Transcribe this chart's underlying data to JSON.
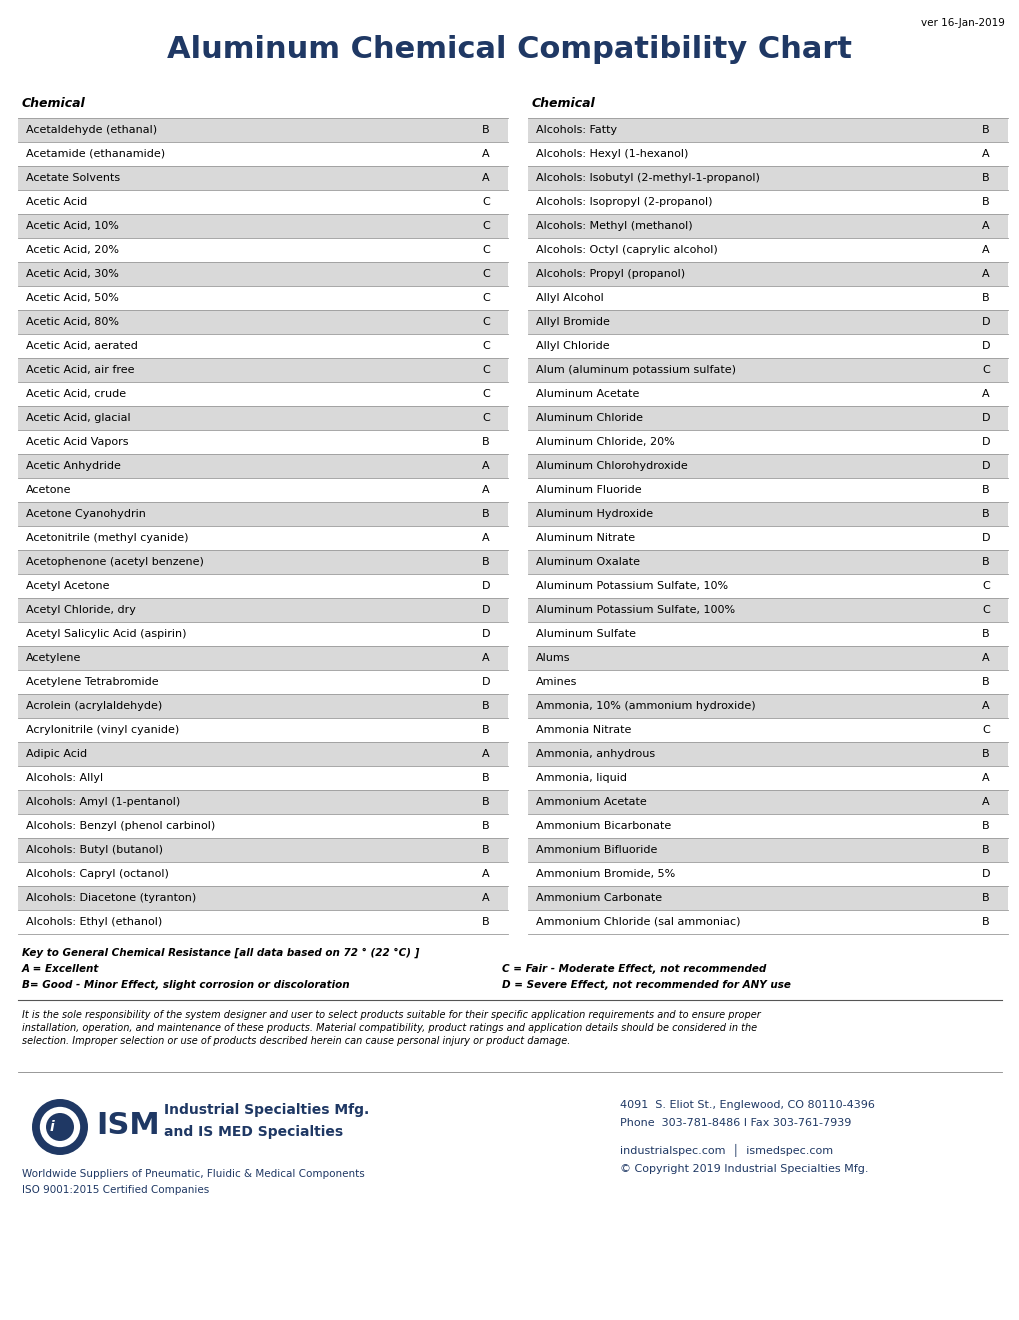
{
  "title": "Aluminum Chemical Compatibility Chart",
  "version": "ver 16-Jan-2019",
  "left_column": [
    [
      "Acetaldehyde (ethanal)",
      "B"
    ],
    [
      "Acetamide (ethanamide)",
      "A"
    ],
    [
      "Acetate Solvents",
      "A"
    ],
    [
      "Acetic Acid",
      "C"
    ],
    [
      "Acetic Acid, 10%",
      "C"
    ],
    [
      "Acetic Acid, 20%",
      "C"
    ],
    [
      "Acetic Acid, 30%",
      "C"
    ],
    [
      "Acetic Acid, 50%",
      "C"
    ],
    [
      "Acetic Acid, 80%",
      "C"
    ],
    [
      "Acetic Acid, aerated",
      "C"
    ],
    [
      "Acetic Acid, air free",
      "C"
    ],
    [
      "Acetic Acid, crude",
      "C"
    ],
    [
      "Acetic Acid, glacial",
      "C"
    ],
    [
      "Acetic Acid Vapors",
      "B"
    ],
    [
      "Acetic Anhydride",
      "A"
    ],
    [
      "Acetone",
      "A"
    ],
    [
      "Acetone Cyanohydrin",
      "B"
    ],
    [
      "Acetonitrile (methyl cyanide)",
      "A"
    ],
    [
      "Acetophenone (acetyl benzene)",
      "B"
    ],
    [
      "Acetyl Acetone",
      "D"
    ],
    [
      "Acetyl Chloride, dry",
      "D"
    ],
    [
      "Acetyl Salicylic Acid (aspirin)",
      "D"
    ],
    [
      "Acetylene",
      "A"
    ],
    [
      "Acetylene Tetrabromide",
      "D"
    ],
    [
      "Acrolein (acrylaldehyde)",
      "B"
    ],
    [
      "Acrylonitrile (vinyl cyanide)",
      "B"
    ],
    [
      "Adipic Acid",
      "A"
    ],
    [
      "Alcohols: Allyl",
      "B"
    ],
    [
      "Alcohols: Amyl (1-pentanol)",
      "B"
    ],
    [
      "Alcohols: Benzyl (phenol carbinol)",
      "B"
    ],
    [
      "Alcohols: Butyl (butanol)",
      "B"
    ],
    [
      "Alcohols: Capryl (octanol)",
      "A"
    ],
    [
      "Alcohols: Diacetone (tyranton)",
      "A"
    ],
    [
      "Alcohols: Ethyl (ethanol)",
      "B"
    ]
  ],
  "right_column": [
    [
      "Alcohols: Fatty",
      "B"
    ],
    [
      "Alcohols: Hexyl (1-hexanol)",
      "A"
    ],
    [
      "Alcohols: Isobutyl (2-methyl-1-propanol)",
      "B"
    ],
    [
      "Alcohols: Isopropyl (2-propanol)",
      "B"
    ],
    [
      "Alcohols: Methyl (methanol)",
      "A"
    ],
    [
      "Alcohols: Octyl (caprylic alcohol)",
      "A"
    ],
    [
      "Alcohols: Propyl (propanol)",
      "A"
    ],
    [
      "Allyl Alcohol",
      "B"
    ],
    [
      "Allyl Bromide",
      "D"
    ],
    [
      "Allyl Chloride",
      "D"
    ],
    [
      "Alum (aluminum potassium sulfate)",
      "C"
    ],
    [
      "Aluminum Acetate",
      "A"
    ],
    [
      "Aluminum Chloride",
      "D"
    ],
    [
      "Aluminum Chloride, 20%",
      "D"
    ],
    [
      "Aluminum Chlorohydroxide",
      "D"
    ],
    [
      "Aluminum Fluoride",
      "B"
    ],
    [
      "Aluminum Hydroxide",
      "B"
    ],
    [
      "Aluminum Nitrate",
      "D"
    ],
    [
      "Aluminum Oxalate",
      "B"
    ],
    [
      "Aluminum Potassium Sulfate, 10%",
      "C"
    ],
    [
      "Aluminum Potassium Sulfate, 100%",
      "C"
    ],
    [
      "Aluminum Sulfate",
      "B"
    ],
    [
      "Alums",
      "A"
    ],
    [
      "Amines",
      "B"
    ],
    [
      "Ammonia, 10% (ammonium hydroxide)",
      "A"
    ],
    [
      "Ammonia Nitrate",
      "C"
    ],
    [
      "Ammonia, anhydrous",
      "B"
    ],
    [
      "Ammonia, liquid",
      "A"
    ],
    [
      "Ammonium Acetate",
      "A"
    ],
    [
      "Ammonium Bicarbonate",
      "B"
    ],
    [
      "Ammonium Bifluoride",
      "B"
    ],
    [
      "Ammonium Bromide, 5%",
      "D"
    ],
    [
      "Ammonium Carbonate",
      "B"
    ],
    [
      "Ammonium Chloride (sal ammoniac)",
      "B"
    ]
  ],
  "key_line0": "Key to General Chemical Resistance [all data based on 72 ° (22 °C) ]",
  "key_line1a": "A = Excellent",
  "key_line1b": "C = Fair - Moderate Effect, not recommended",
  "key_line2a": "B= Good - Minor Effect, slight corrosion or discoloration",
  "key_line2b": "D = Severe Effect, not recommended for ANY use",
  "disclaimer": "It is the sole responsibility of the system designer and user to select products suitable for their specific application requirements and to ensure proper\ninstallation, operation, and maintenance of these products. Material compatibility, product ratings and application details should be considered in the\nselection. Improper selection or use of products described herein can cause personal injury or product damage.",
  "company_name1": "Industrial Specialties Mfg.",
  "company_name2": "and IS MED Specialties",
  "company_tagline": "Worldwide Suppliers of Pneumatic, Fluidic & Medical Components",
  "company_cert": "ISO 9001:2015 Certified Companies",
  "contact_address": "4091  S. Eliot St., Englewood, CO 80110-4396",
  "contact_phone": "Phone  303-781-8486 I Fax 303-761-7939",
  "contact_web": "industrialspec.com  │  ismedspec.com",
  "contact_copyright": "© Copyright 2019 Industrial Specialties Mfg.",
  "bg_color": "#ffffff",
  "row_alt_color": "#d9d9d9",
  "row_white_color": "#ffffff",
  "title_color": "#1f3864",
  "ism_blue": "#1f3864",
  "text_color": "#000000",
  "border_color": "#999999"
}
